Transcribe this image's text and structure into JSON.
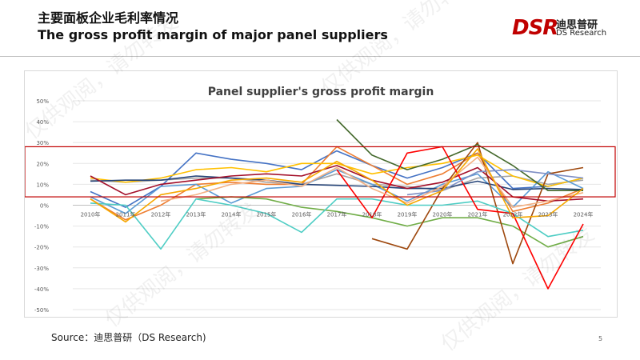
{
  "header": {
    "title_zh": "主要面板企业毛利率情况",
    "title_en": "The gross profit margin of major panel suppliers"
  },
  "logo": {
    "mark": "DSR",
    "name_zh": "迪思普研",
    "name_en": "DS Research"
  },
  "footer": {
    "source": "Source：迪思普研（DS Research)",
    "page": "5"
  },
  "watermark": "仅供观阅，请勿转发",
  "colors": {
    "highlight_box": "#c00000",
    "grid": "#e6e6e6",
    "axis_text": "#595959"
  },
  "chart_data": {
    "type": "line",
    "title": "Panel supplier's gross profit margin",
    "xlabel": "",
    "ylabel": "",
    "ylim": [
      -50,
      50
    ],
    "y_ticks": [
      "50%",
      "40%",
      "30%",
      "20%",
      "10%",
      "0%",
      "-10%",
      "-20%",
      "-30%",
      "-40%",
      "-50%"
    ],
    "categories": [
      "2010年",
      "2011年",
      "2012年",
      "2013年",
      "2014年",
      "2015年",
      "2016年",
      "2017年",
      "2018年",
      "2019年",
      "2020年",
      "2021年",
      "2022年",
      "2023年",
      "2024年"
    ],
    "grid": true,
    "legend": "none",
    "highlight_range": [
      4,
      28
    ],
    "series": [
      {
        "color": "#4472c4",
        "values": [
          6.5,
          -1,
          9,
          25,
          22,
          20,
          17,
          26,
          19,
          13,
          18,
          25,
          8,
          9,
          13
        ]
      },
      {
        "color": "#ed7d31",
        "values": [
          3,
          -7,
          0,
          10,
          11,
          10,
          10,
          28,
          19,
          10,
          15,
          25,
          -3,
          1,
          8
        ]
      },
      {
        "color": "#a5a5a5",
        "values": [
          12,
          11,
          12,
          13,
          13,
          11,
          10,
          15,
          10,
          9,
          7,
          13,
          14,
          10,
          12
        ]
      },
      {
        "color": "#ffc000",
        "values": [
          13,
          11,
          13,
          17,
          18,
          16,
          20,
          20,
          15,
          18,
          20,
          24,
          14,
          9,
          13
        ]
      },
      {
        "color": "#5b9bd5",
        "values": [
          4,
          -4,
          9,
          10,
          1,
          8,
          9,
          17,
          10,
          2,
          10,
          15,
          -1,
          16,
          8
        ]
      },
      {
        "color": "#70ad47",
        "values": [
          null,
          null,
          null,
          3,
          4,
          3,
          -1,
          -3,
          -6,
          -10,
          -6,
          -6,
          -10,
          -20,
          -15
        ]
      },
      {
        "color": "#264478",
        "values": [
          11.5,
          12,
          12,
          14,
          13,
          12,
          10,
          9.5,
          9,
          8,
          8,
          11.5,
          7.5,
          8,
          7.5
        ]
      },
      {
        "color": "#9e480e",
        "values": [
          null,
          null,
          null,
          null,
          null,
          null,
          null,
          null,
          -16,
          -21,
          8,
          30,
          -28,
          15,
          18
        ]
      },
      {
        "color": "#43682b",
        "values": [
          null,
          null,
          null,
          null,
          null,
          null,
          null,
          41,
          24,
          17,
          22,
          29,
          19,
          7,
          7
        ]
      },
      {
        "color": "#4ecdc4",
        "values": [
          1,
          0,
          -21,
          3,
          0,
          -4,
          -13,
          3,
          3,
          0,
          0,
          2,
          -4,
          -15,
          -12
        ]
      },
      {
        "color": "#a30f2a",
        "values": [
          14,
          5,
          10,
          12,
          14,
          15,
          14,
          19,
          12,
          8,
          11,
          18,
          4,
          2,
          3
        ]
      },
      {
        "color": "#ff0000",
        "values": [
          null,
          null,
          null,
          null,
          null,
          null,
          null,
          17,
          -6,
          25,
          28,
          -2,
          -4,
          -40,
          -9
        ]
      },
      {
        "color": "#7e8fc4",
        "values": [
          null,
          null,
          null,
          null,
          null,
          null,
          null,
          null,
          null,
          5,
          7,
          16,
          17,
          15,
          13
        ]
      },
      {
        "color": "#f4b183",
        "values": [
          null,
          null,
          2,
          5,
          10,
          12,
          9,
          18,
          8,
          1,
          9,
          23,
          -1,
          2,
          6
        ]
      },
      {
        "color": "#f6a800",
        "values": [
          3,
          -8,
          5,
          8,
          12,
          13,
          11,
          21,
          12,
          0,
          7,
          27,
          -6,
          -5,
          8
        ]
      }
    ]
  }
}
